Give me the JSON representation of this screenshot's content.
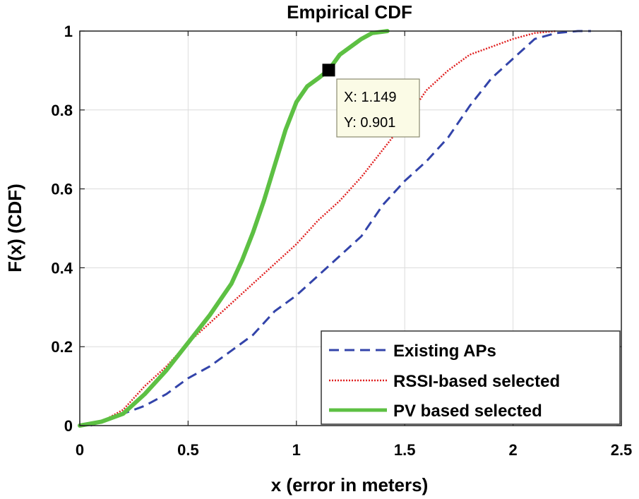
{
  "chart_data": {
    "type": "line",
    "title": "Empirical CDF",
    "xlabel": "x (error in meters)",
    "ylabel": "F(x)  (CDF)",
    "xlim": [
      0,
      2.5
    ],
    "ylim": [
      0,
      1
    ],
    "xticks": [
      0,
      0.5,
      1,
      1.5,
      2,
      2.5
    ],
    "xtick_labels": [
      "0",
      "0.5",
      "1",
      "1.5",
      "2",
      "2.5"
    ],
    "yticks": [
      0,
      0.2,
      0.4,
      0.6,
      0.8,
      1
    ],
    "ytick_labels": [
      "0",
      "0.2",
      "0.4",
      "0.6",
      "0.8",
      "1"
    ],
    "grid": true,
    "legend_position": "bottom-right",
    "series": [
      {
        "name": "Existing APs",
        "color": "#3344aa",
        "style": "dashed",
        "x": [
          0.05,
          0.1,
          0.2,
          0.3,
          0.4,
          0.5,
          0.6,
          0.7,
          0.8,
          0.9,
          0.95,
          1.0,
          1.1,
          1.2,
          1.3,
          1.4,
          1.5,
          1.6,
          1.7,
          1.8,
          1.9,
          2.0,
          2.1,
          2.2,
          2.3,
          2.36
        ],
        "y": [
          0.0,
          0.01,
          0.03,
          0.05,
          0.08,
          0.12,
          0.15,
          0.19,
          0.23,
          0.29,
          0.31,
          0.33,
          0.38,
          0.43,
          0.48,
          0.56,
          0.62,
          0.67,
          0.73,
          0.81,
          0.88,
          0.93,
          0.98,
          0.995,
          1.0,
          1.0
        ]
      },
      {
        "name": "RSSI-based selected",
        "color": "#e02020",
        "style": "dotted",
        "x": [
          0.0,
          0.1,
          0.2,
          0.3,
          0.4,
          0.5,
          0.6,
          0.7,
          0.8,
          0.9,
          1.0,
          1.1,
          1.2,
          1.3,
          1.4,
          1.5,
          1.6,
          1.7,
          1.8,
          1.9,
          2.0,
          2.1,
          2.2
        ],
        "y": [
          0.0,
          0.01,
          0.04,
          0.1,
          0.15,
          0.21,
          0.26,
          0.31,
          0.36,
          0.41,
          0.46,
          0.52,
          0.57,
          0.63,
          0.7,
          0.77,
          0.85,
          0.9,
          0.94,
          0.96,
          0.98,
          0.995,
          1.0
        ]
      },
      {
        "name": "PV based selected",
        "color": "#5dc043",
        "style": "solid",
        "x": [
          0.0,
          0.1,
          0.2,
          0.3,
          0.4,
          0.5,
          0.6,
          0.7,
          0.75,
          0.8,
          0.85,
          0.9,
          0.95,
          1.0,
          1.05,
          1.1,
          1.149,
          1.2,
          1.3,
          1.35,
          1.42
        ],
        "y": [
          0.0,
          0.01,
          0.03,
          0.08,
          0.14,
          0.21,
          0.28,
          0.36,
          0.42,
          0.49,
          0.57,
          0.66,
          0.75,
          0.82,
          0.86,
          0.88,
          0.901,
          0.94,
          0.98,
          0.995,
          1.0
        ]
      }
    ],
    "datatip": {
      "x": 1.149,
      "y": 0.901,
      "line1": "X: 1.149",
      "line2": "Y: 0.901"
    }
  }
}
